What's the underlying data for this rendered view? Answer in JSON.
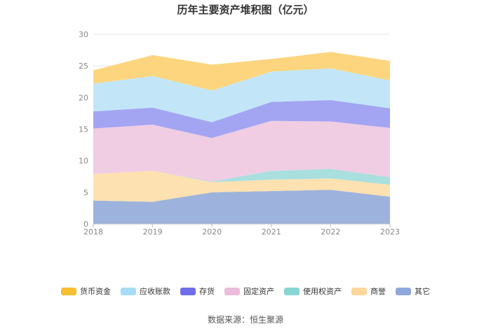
{
  "chart_data": {
    "type": "area",
    "stacked": true,
    "title": "历年主要资产堆积图（亿元）",
    "x": [
      "2018",
      "2019",
      "2020",
      "2021",
      "2022",
      "2023"
    ],
    "ylim": [
      0,
      30
    ],
    "yticks": [
      0,
      5,
      10,
      15,
      20,
      25,
      30
    ],
    "legend_position": "bottom",
    "grid": true,
    "series": [
      {
        "name": "其它",
        "color": "#9db3dd",
        "values": [
          3.7,
          3.5,
          5.0,
          5.2,
          5.4,
          4.3
        ]
      },
      {
        "name": "商誉",
        "color": "#fde1b0",
        "values": [
          4.2,
          4.9,
          1.6,
          1.8,
          1.8,
          1.9
        ]
      },
      {
        "name": "使用权资产",
        "color": "#a9dfdf",
        "values": [
          0.0,
          0.0,
          0.1,
          1.4,
          1.5,
          1.2
        ]
      },
      {
        "name": "固定资产",
        "color": "#f0cde3",
        "values": [
          7.2,
          7.3,
          6.9,
          7.9,
          7.5,
          7.8
        ]
      },
      {
        "name": "存货",
        "color": "#a3a5f2",
        "values": [
          2.7,
          2.7,
          2.5,
          3.0,
          3.4,
          3.1
        ]
      },
      {
        "name": "应收账款",
        "color": "#c2e6f8",
        "values": [
          4.4,
          5.0,
          5.0,
          4.8,
          5.0,
          4.4
        ]
      },
      {
        "name": "货币资金",
        "color": "#fdd57f",
        "values": [
          2.1,
          3.3,
          4.1,
          2.0,
          2.6,
          3.1
        ]
      }
    ]
  },
  "legend": [
    {
      "label": "货币资金",
      "color": "#f7bf2f"
    },
    {
      "label": "应收账款",
      "color": "#a6dcf6"
    },
    {
      "label": "存货",
      "color": "#6f6ee8"
    },
    {
      "label": "固定资产",
      "color": "#ebbcd9"
    },
    {
      "label": "使用权资产",
      "color": "#86d6d4"
    },
    {
      "label": "商誉",
      "color": "#fcd79b"
    },
    {
      "label": "其它",
      "color": "#8fa8da"
    }
  ],
  "source": "数据来源：恒生聚源"
}
